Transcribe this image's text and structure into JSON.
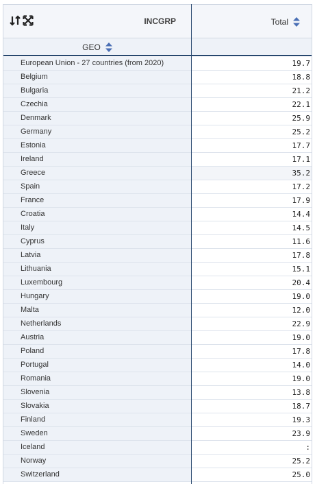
{
  "header": {
    "col_dimension_label": "INCGRP",
    "total_label": "Total",
    "row_dimension_label": "GEO"
  },
  "colors": {
    "accent": "#27476e",
    "sort_arrows": "#4a6fb5"
  },
  "rows": [
    {
      "geo": "European Union - 27 countries (from 2020)",
      "value": "19.7"
    },
    {
      "geo": "Belgium",
      "value": "18.8"
    },
    {
      "geo": "Bulgaria",
      "value": "21.2"
    },
    {
      "geo": "Czechia",
      "value": "22.1"
    },
    {
      "geo": "Denmark",
      "value": "25.9"
    },
    {
      "geo": "Germany",
      "value": "25.2"
    },
    {
      "geo": "Estonia",
      "value": "17.7"
    },
    {
      "geo": "Ireland",
      "value": "17.1"
    },
    {
      "geo": "Greece",
      "value": "35.2"
    },
    {
      "geo": "Spain",
      "value": "17.2"
    },
    {
      "geo": "France",
      "value": "17.9"
    },
    {
      "geo": "Croatia",
      "value": "14.4"
    },
    {
      "geo": "Italy",
      "value": "14.5"
    },
    {
      "geo": "Cyprus",
      "value": "11.6"
    },
    {
      "geo": "Latvia",
      "value": "17.8"
    },
    {
      "geo": "Lithuania",
      "value": "15.1"
    },
    {
      "geo": "Luxembourg",
      "value": "20.4"
    },
    {
      "geo": "Hungary",
      "value": "19.0"
    },
    {
      "geo": "Malta",
      "value": "12.0"
    },
    {
      "geo": "Netherlands",
      "value": "22.9"
    },
    {
      "geo": "Austria",
      "value": "19.0"
    },
    {
      "geo": "Poland",
      "value": "17.8"
    },
    {
      "geo": "Portugal",
      "value": "14.0"
    },
    {
      "geo": "Romania",
      "value": "19.0"
    },
    {
      "geo": "Slovenia",
      "value": "13.8"
    },
    {
      "geo": "Slovakia",
      "value": "18.7"
    },
    {
      "geo": "Finland",
      "value": "19.3"
    },
    {
      "geo": "Sweden",
      "value": "23.9"
    },
    {
      "geo": "Iceland",
      "value": ":"
    },
    {
      "geo": "Norway",
      "value": "25.2"
    },
    {
      "geo": "Switzerland",
      "value": "25.0"
    }
  ]
}
